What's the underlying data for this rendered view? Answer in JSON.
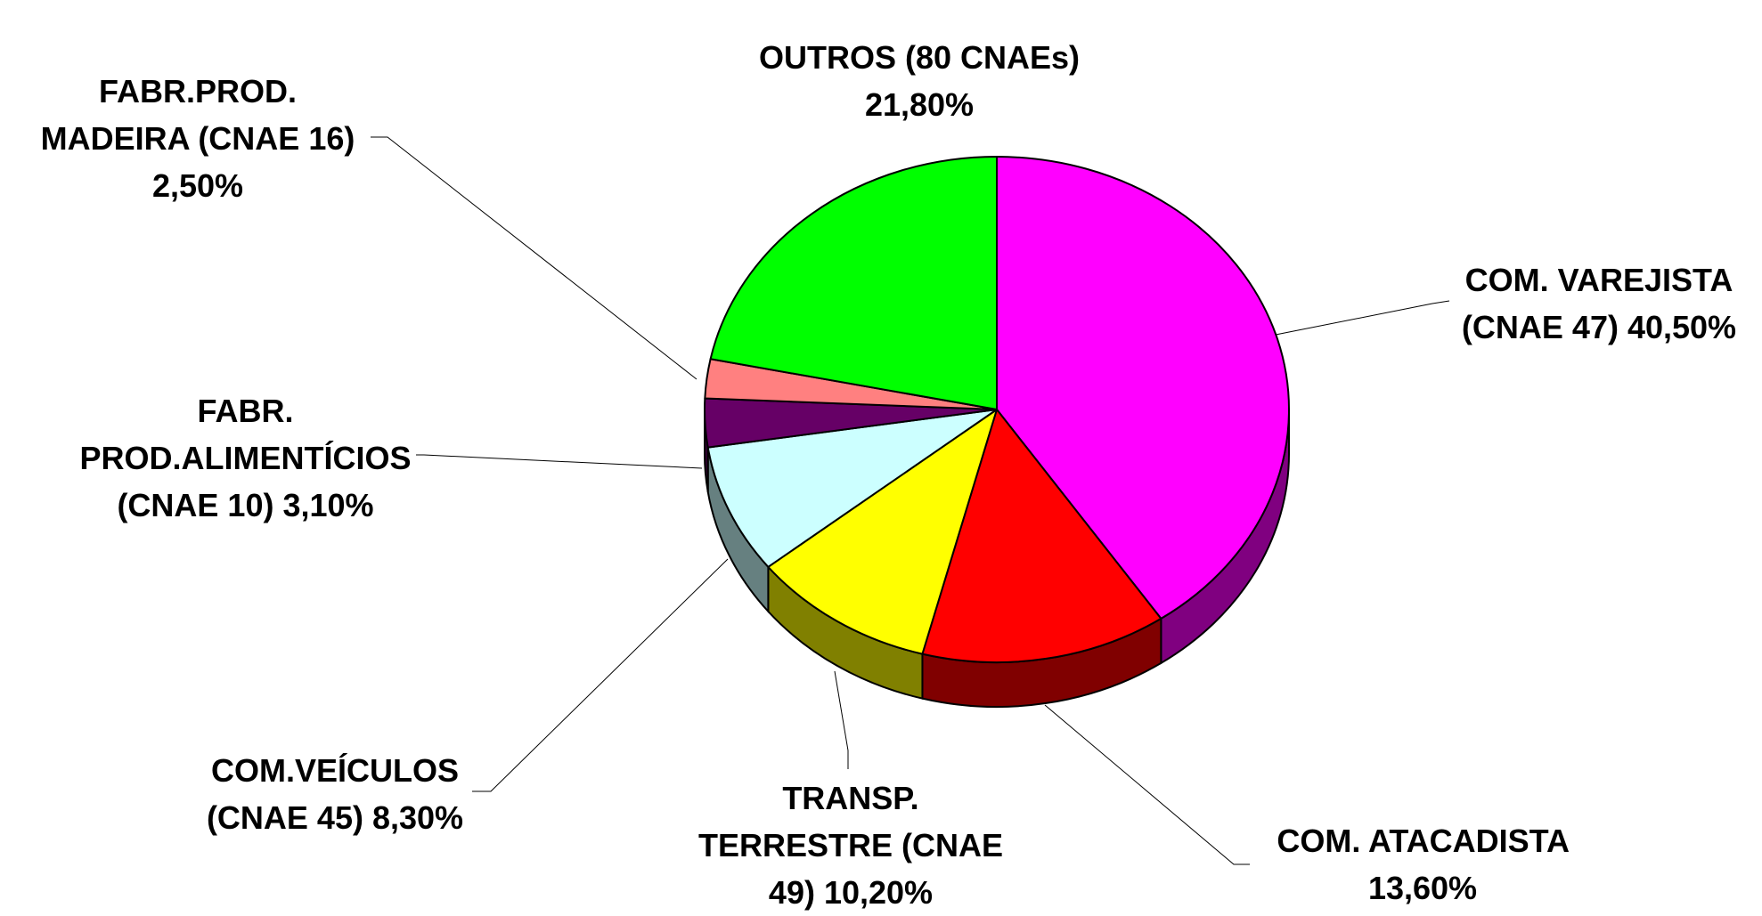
{
  "chart_data": {
    "type": "pie",
    "categories": [
      "COM. VAREJISTA (CNAE 47)",
      "COM. ATACADISTA",
      "TRANSP. TERRESTRE (CNAE 49)",
      "COM.VEÍCULOS (CNAE 45)",
      "FABR. PROD.ALIMENTÍCIOS (CNAE 10)",
      "FABR.PROD. MADEIRA (CNAE 16)",
      "OUTROS (80 CNAEs)"
    ],
    "values": [
      40.5,
      13.6,
      10.2,
      8.3,
      3.1,
      2.5,
      21.8
    ],
    "value_labels": [
      "40,50%",
      "13,60%",
      "10,20%",
      "8,30%",
      "3,10%",
      "2,50%",
      "21,80%"
    ],
    "colors": [
      "#ff00ff",
      "#ff0000",
      "#ffff00",
      "#ccffff",
      "#660066",
      "#ff8080",
      "#00ff00"
    ]
  }
}
